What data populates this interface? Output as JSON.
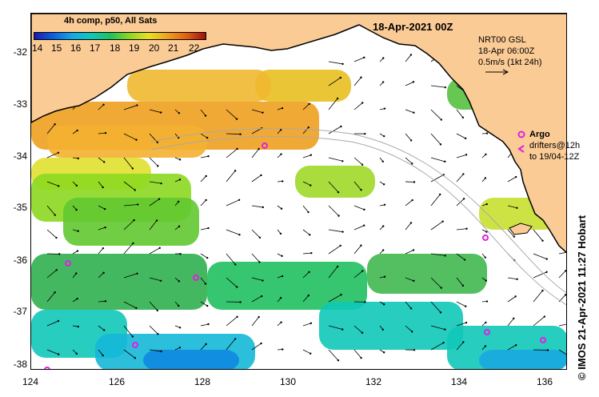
{
  "map": {
    "title": "18-Apr-2021 00Z",
    "lon_range": [
      124,
      136.5
    ],
    "lat_range": [
      -38.1,
      -31.4
    ],
    "x_ticks": [
      "124",
      "126",
      "128",
      "130",
      "132",
      "134",
      "136"
    ],
    "y_ticks": [
      "-32",
      "-33",
      "-34",
      "-35",
      "-36",
      "-37",
      "-38"
    ],
    "land_color": "#fbcb96"
  },
  "colorbar": {
    "title": "4h comp, p50, All Sats",
    "labels": [
      "14",
      "15",
      "16",
      "17",
      "18",
      "19",
      "20",
      "21",
      "22"
    ],
    "colors": [
      "#1a1ab0",
      "#0d5fe0",
      "#15a8e8",
      "#10c8b8",
      "#20c060",
      "#8cd820",
      "#e8e020",
      "#f0a020",
      "#e06010",
      "#a01010"
    ]
  },
  "currents": {
    "source": "NRT00 GSL",
    "time": "18-Apr 06:00Z",
    "scale": "0.5m/s (1kt 24h)"
  },
  "drifters": {
    "argo_label": "Argo",
    "drifters_line1": "drifters@12h",
    "drifters_line2": "to 19/04-12Z"
  },
  "credit": "© IMOS 21-Apr-2021 11:27 Hobart"
}
